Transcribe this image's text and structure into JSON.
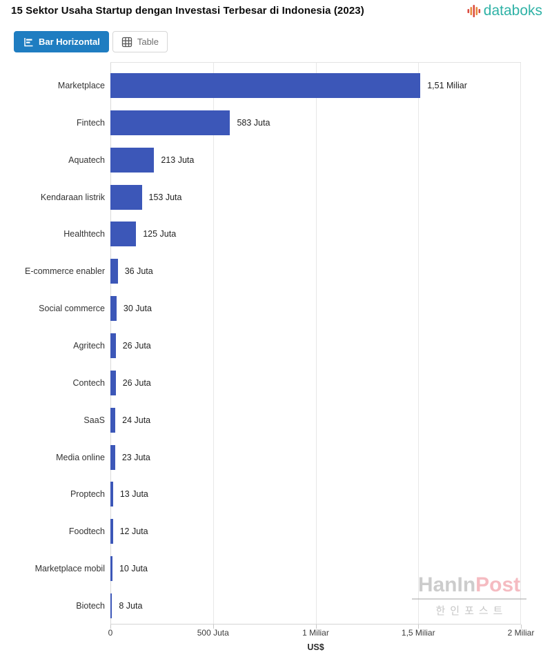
{
  "header": {
    "title": "15 Sektor Usaha Startup dengan Investasi Terbesar di Indonesia (2023)",
    "brand": "databoks"
  },
  "toolbar": {
    "bar_button_label": "Bar Horizontal",
    "table_button_label": "Table",
    "bar_button_icon": "horizontal-bar-chart-icon",
    "table_button_icon": "table-grid-icon"
  },
  "colors": {
    "accent_blue": "#1F7DC1",
    "bar_blue": "#3C57B8",
    "brand_teal": "#2FB2A6",
    "brand_icon_red": "#D94A3F",
    "brand_icon_orange": "#E98A3C"
  },
  "chart_data": {
    "type": "bar",
    "orientation": "horizontal",
    "title": "15 Sektor Usaha Startup dengan Investasi Terbesar di Indonesia (2023)",
    "xlabel": "US$",
    "ylabel": "",
    "grid": true,
    "legend": false,
    "categories": [
      "Marketplace",
      "Fintech",
      "Aquatech",
      "Kendaraan listrik",
      "Healthtech",
      "E-commerce enabler",
      "Social commerce",
      "Agritech",
      "Contech",
      "SaaS",
      "Media online",
      "Proptech",
      "Foodtech",
      "Marketplace mobil",
      "Biotech"
    ],
    "values_juta": [
      1510,
      583,
      213,
      153,
      125,
      36,
      30,
      26,
      26,
      24,
      23,
      13,
      12,
      10,
      8
    ],
    "value_labels": [
      "1,51 Miliar",
      "583 Juta",
      "213 Juta",
      "153 Juta",
      "125 Juta",
      "36 Juta",
      "30 Juta",
      "26 Juta",
      "26 Juta",
      "24 Juta",
      "23 Juta",
      "13 Juta",
      "12 Juta",
      "10 Juta",
      "8 Juta"
    ],
    "x_ticks": [
      "0",
      "500 Juta",
      "1 Miliar",
      "1,5 Miliar",
      "2 Miliar"
    ],
    "x_tick_values_juta": [
      0,
      500,
      1000,
      1500,
      2000
    ],
    "xlim_juta": [
      0,
      2000
    ],
    "bar_color": "#3C57B8"
  },
  "watermark": {
    "text_en_gray": "HanIn",
    "text_en_red": "Post",
    "text_kr": "한인포스트"
  }
}
